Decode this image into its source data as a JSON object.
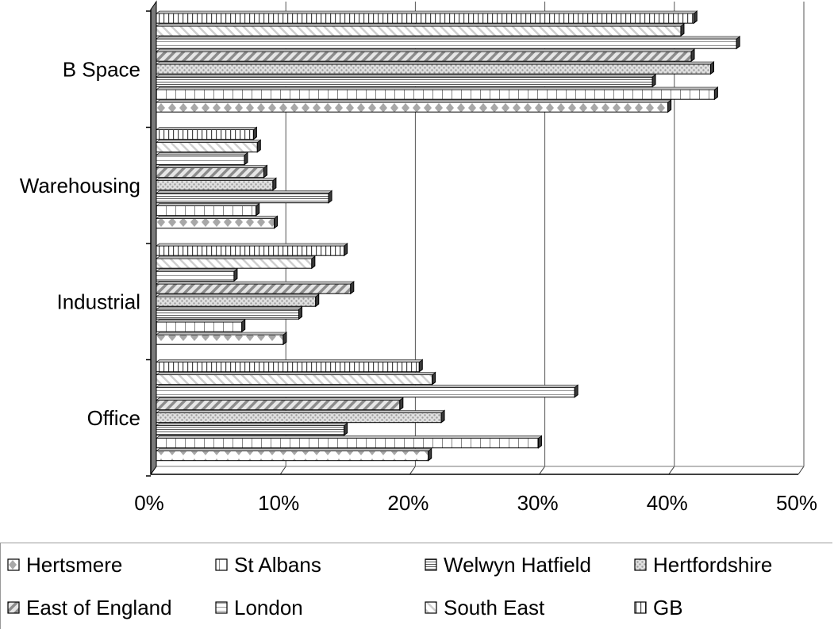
{
  "chart_data": {
    "type": "bar",
    "orientation": "horizontal",
    "style": "3d-clustered",
    "categories": [
      "B Space",
      "Warehousing",
      "Industrial",
      "Office"
    ],
    "x_ticks": [
      "0%",
      "10%",
      "20%",
      "30%",
      "40%",
      "50%"
    ],
    "xlim": [
      0,
      50
    ],
    "grid": "vertical",
    "legend_position": "bottom",
    "series": [
      {
        "name": "GB",
        "values": [
          41.5,
          7.5,
          14.5,
          20.3
        ]
      },
      {
        "name": "South East",
        "values": [
          40.5,
          7.8,
          12,
          21.3
        ]
      },
      {
        "name": "London",
        "values": [
          44.8,
          6.8,
          6,
          32.3
        ]
      },
      {
        "name": "East of England",
        "values": [
          41.3,
          8.3,
          15,
          18.8
        ]
      },
      {
        "name": "Hertfordshire",
        "values": [
          42.8,
          9,
          12.3,
          22
        ]
      },
      {
        "name": "Welwyn Hatfield",
        "values": [
          38.3,
          13.3,
          11,
          14.5
        ]
      },
      {
        "name": "St Albans",
        "values": [
          43.1,
          7.7,
          6.6,
          29.5
        ]
      },
      {
        "name": "Hertsmere",
        "values": [
          39.5,
          9.1,
          9.8,
          21
        ]
      }
    ]
  },
  "legend": {
    "items": [
      {
        "label": "Hertsmere",
        "pattern": "diamond"
      },
      {
        "label": "St Albans",
        "pattern": "vlines"
      },
      {
        "label": "Welwyn Hatfield",
        "pattern": "hlines-dense"
      },
      {
        "label": "Hertfordshire",
        "pattern": "dots"
      },
      {
        "label": "East of England",
        "pattern": "diag"
      },
      {
        "label": "London",
        "pattern": "hlines-wide"
      },
      {
        "label": "South East",
        "pattern": "diag-light"
      },
      {
        "label": "GB",
        "pattern": "vlines-dense"
      }
    ]
  }
}
